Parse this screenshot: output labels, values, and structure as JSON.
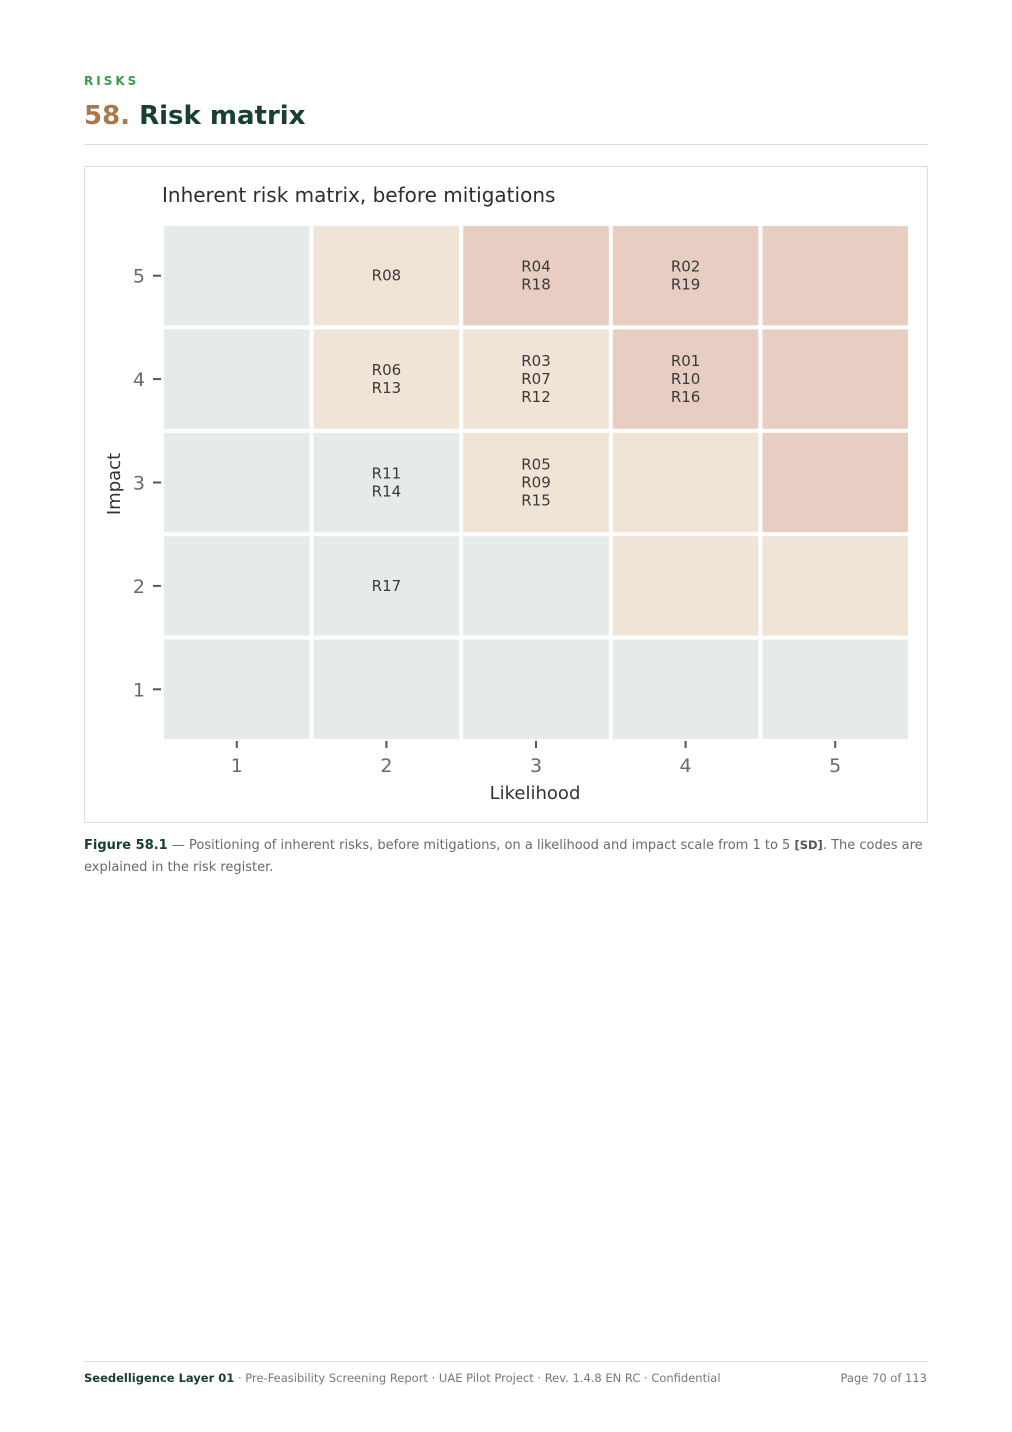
{
  "section": {
    "kicker": "RISKS",
    "number": "58.",
    "title": "Risk matrix"
  },
  "chart_data": {
    "type": "heatmap",
    "title": "Inherent risk matrix, before mitigations",
    "xlabel": "Likelihood",
    "ylabel": "Impact",
    "x_ticks": [
      1,
      2,
      3,
      4,
      5
    ],
    "y_ticks": [
      1,
      2,
      3,
      4,
      5
    ],
    "colors": {
      "low": "#e5ebe6",
      "medium": "#f0e4d6",
      "high": "#e8cec2"
    },
    "cells": [
      {
        "likelihood": 1,
        "impact": 5,
        "level": "low",
        "risks": []
      },
      {
        "likelihood": 2,
        "impact": 5,
        "level": "medium",
        "risks": [
          "R08"
        ]
      },
      {
        "likelihood": 3,
        "impact": 5,
        "level": "high",
        "risks": [
          "R04",
          "R18"
        ]
      },
      {
        "likelihood": 4,
        "impact": 5,
        "level": "high",
        "risks": [
          "R02",
          "R19"
        ]
      },
      {
        "likelihood": 5,
        "impact": 5,
        "level": "high",
        "risks": []
      },
      {
        "likelihood": 1,
        "impact": 4,
        "level": "low",
        "risks": []
      },
      {
        "likelihood": 2,
        "impact": 4,
        "level": "medium",
        "risks": [
          "R06",
          "R13"
        ]
      },
      {
        "likelihood": 3,
        "impact": 4,
        "level": "medium",
        "risks": [
          "R03",
          "R07",
          "R12"
        ]
      },
      {
        "likelihood": 4,
        "impact": 4,
        "level": "high",
        "risks": [
          "R01",
          "R10",
          "R16"
        ]
      },
      {
        "likelihood": 5,
        "impact": 4,
        "level": "high",
        "risks": []
      },
      {
        "likelihood": 1,
        "impact": 3,
        "level": "low",
        "risks": []
      },
      {
        "likelihood": 2,
        "impact": 3,
        "level": "low",
        "risks": [
          "R11",
          "R14"
        ]
      },
      {
        "likelihood": 3,
        "impact": 3,
        "level": "medium",
        "risks": [
          "R05",
          "R09",
          "R15"
        ]
      },
      {
        "likelihood": 4,
        "impact": 3,
        "level": "medium",
        "risks": []
      },
      {
        "likelihood": 5,
        "impact": 3,
        "level": "high",
        "risks": []
      },
      {
        "likelihood": 1,
        "impact": 2,
        "level": "low",
        "risks": []
      },
      {
        "likelihood": 2,
        "impact": 2,
        "level": "low",
        "risks": [
          "R17"
        ]
      },
      {
        "likelihood": 3,
        "impact": 2,
        "level": "low",
        "risks": []
      },
      {
        "likelihood": 4,
        "impact": 2,
        "level": "medium",
        "risks": []
      },
      {
        "likelihood": 5,
        "impact": 2,
        "level": "medium",
        "risks": []
      },
      {
        "likelihood": 1,
        "impact": 1,
        "level": "low",
        "risks": []
      },
      {
        "likelihood": 2,
        "impact": 1,
        "level": "low",
        "risks": []
      },
      {
        "likelihood": 3,
        "impact": 1,
        "level": "low",
        "risks": []
      },
      {
        "likelihood": 4,
        "impact": 1,
        "level": "low",
        "risks": []
      },
      {
        "likelihood": 5,
        "impact": 1,
        "level": "low",
        "risks": []
      }
    ]
  },
  "caption": {
    "label": "Figure 58.1",
    "text": " — Positioning of inherent risks, before mitigations, on a likelihood and impact scale from 1 to 5 ",
    "cite": "[SD]",
    "text_end": ". The codes are explained in the risk register."
  },
  "footer": {
    "brand": "Seedelligence Layer 01",
    "meta": " · Pre-Feasibility Screening Report · UAE Pilot Project · Rev. 1.4.8 EN RC · Confidential",
    "page": "Page 70 of 113"
  }
}
